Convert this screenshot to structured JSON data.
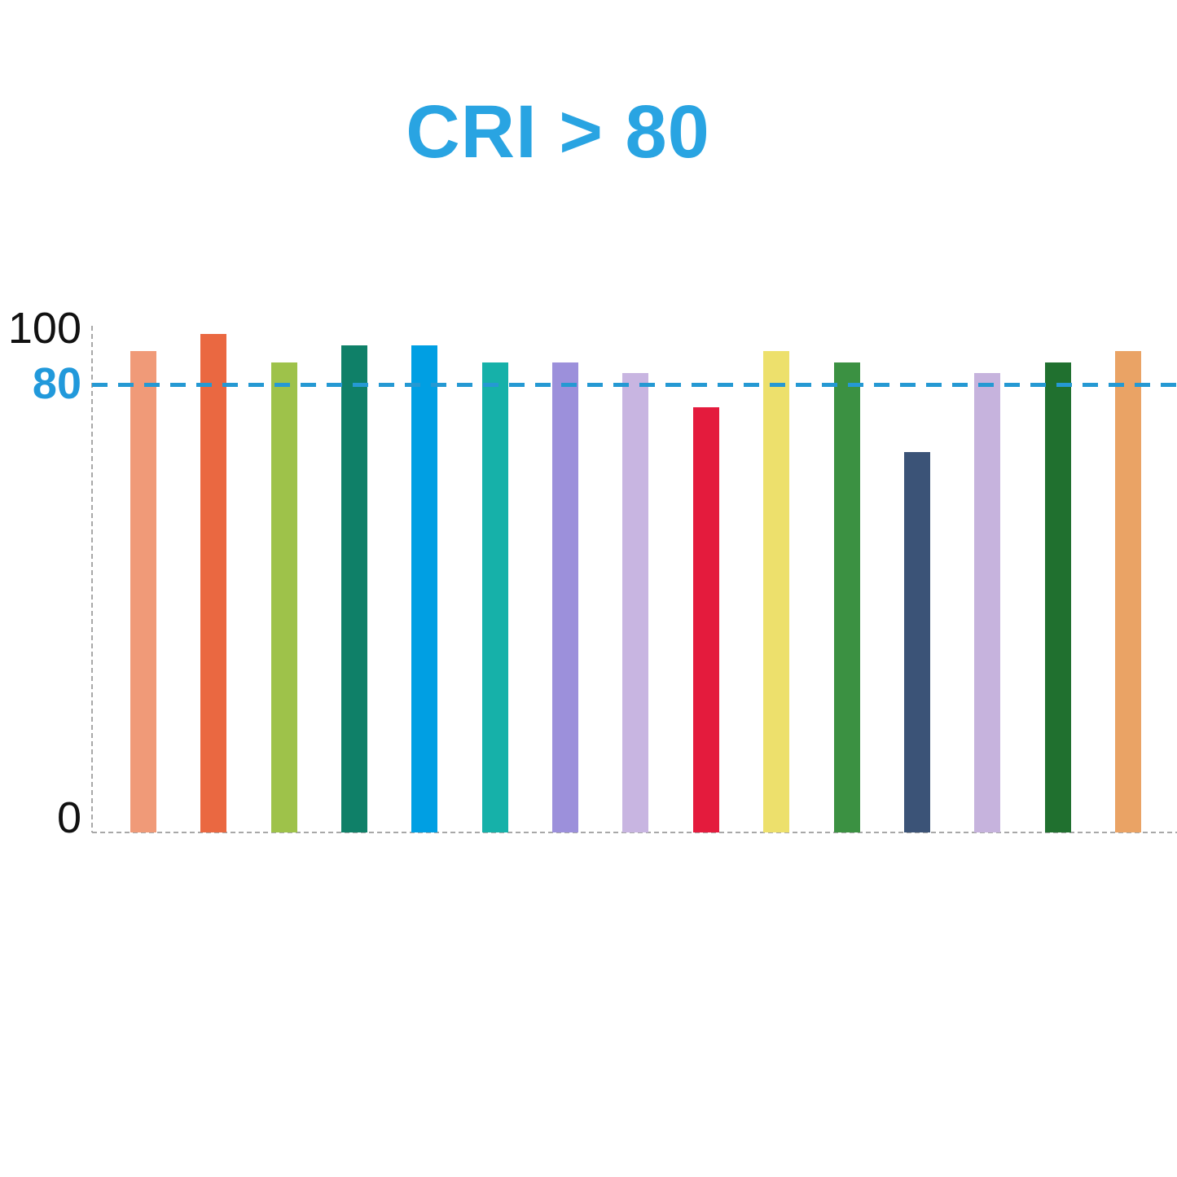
{
  "chart_data": {
    "type": "bar",
    "title": "CRI > 80",
    "categories": [],
    "values": [
      86,
      89,
      84,
      87,
      87,
      84,
      84,
      82,
      76,
      86,
      84,
      68,
      82,
      84,
      86
    ],
    "bar_colors": [
      "#F09A78",
      "#EA6841",
      "#9EC24A",
      "#0F8068",
      "#009FE3",
      "#16B1A9",
      "#9C90DB",
      "#C8B5E1",
      "#E41B3D",
      "#EDE06C",
      "#3B9142",
      "#3B5377",
      "#C6B3DD",
      "#20702F",
      "#EAA365"
    ],
    "xlabel": "",
    "ylabel": "",
    "ylim": [
      0,
      100
    ],
    "ytick_labels": [
      "100",
      "80",
      "0"
    ],
    "reference_line": {
      "value": 80,
      "label": "80",
      "style": "dashed",
      "color": "#2599D3"
    },
    "grid": false,
    "legend": false
  },
  "colors": {
    "background": "#FFFFFF",
    "title_text": "#29A4E2",
    "tick_text": "#111111",
    "ref_label": "#2199DB",
    "axis_dash": "#A8A8A8",
    "ref_line": "#2599D3"
  }
}
